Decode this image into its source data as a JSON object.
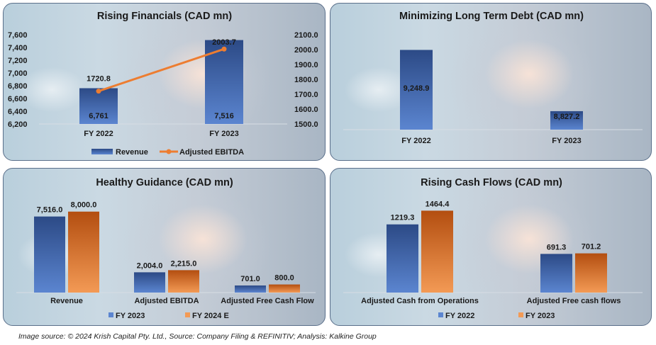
{
  "colors": {
    "blue_top": "#2c4a86",
    "blue_bottom": "#5b85d0",
    "orange_top": "#b34e10",
    "orange_bottom": "#f39a55",
    "line": "#ed7d31"
  },
  "chart_data": [
    {
      "type": "bar",
      "title": "Rising Financials (CAD mn)",
      "categories": [
        "FY 2022",
        "FY 2023"
      ],
      "series": [
        {
          "name": "Revenue",
          "type": "bar",
          "axis": "left",
          "values": [
            6761,
            7516
          ],
          "labels": [
            "6,761",
            "7,516"
          ]
        },
        {
          "name": "Adjusted EBITDA",
          "type": "line",
          "axis": "right",
          "values": [
            1720.8,
            2003.7
          ],
          "labels": [
            "1720.8",
            "2003.7"
          ]
        }
      ],
      "ylim_left": [
        6200,
        7600
      ],
      "yticks_left": [
        "6,200",
        "6,400",
        "6,600",
        "6,800",
        "7,000",
        "7,200",
        "7,400",
        "7,600"
      ],
      "ylim_right": [
        1500,
        2100
      ],
      "yticks_right": [
        "1500.0",
        "1600.0",
        "1700.0",
        "1800.0",
        "1900.0",
        "2000.0",
        "2100.0"
      ],
      "legend": "bottom"
    },
    {
      "type": "bar",
      "title": "Minimizing Long Term Debt (CAD mn)",
      "categories": [
        "FY 2022",
        "FY 2023"
      ],
      "series": [
        {
          "name": "Long Term Debt",
          "values": [
            9248.9,
            8827.2
          ],
          "labels": [
            "9,248.9",
            "8,827.2"
          ]
        }
      ],
      "ylim": [
        8700,
        9300
      ]
    },
    {
      "type": "bar",
      "title": "Healthy Guidance (CAD mn)",
      "categories": [
        "Revenue",
        "Adjusted EBITDA",
        "Adjusted Free Cash Flow"
      ],
      "series": [
        {
          "name": "FY 2023",
          "values": [
            7516.0,
            2004.0,
            701.0
          ],
          "labels": [
            "7,516.0",
            "2,004.0",
            "701.0"
          ]
        },
        {
          "name": "FY 2024 E",
          "values": [
            8000.0,
            2215.0,
            800.0
          ],
          "labels": [
            "8,000.0",
            "2,215.0",
            "800.0"
          ]
        }
      ],
      "ylim": [
        0,
        8400
      ],
      "legend": "bottom"
    },
    {
      "type": "bar",
      "title": "Rising Cash Flows (CAD mn)",
      "categories": [
        "Adjusted Cash from Operations",
        "Adjusted Free cash flows"
      ],
      "series": [
        {
          "name": "FY 2022",
          "values": [
            1219.3,
            691.3
          ],
          "labels": [
            "1219.3",
            "691.3"
          ]
        },
        {
          "name": "FY 2023",
          "values": [
            1464.4,
            701.2
          ],
          "labels": [
            "1464.4",
            "701.2"
          ]
        }
      ],
      "ylim": [
        0,
        1520
      ],
      "legend": "bottom"
    }
  ],
  "footer": "Image source: © 2024 Krish Capital Pty. Ltd., Source: Company Filing & REFINITIV; Analysis: Kalkine Group"
}
